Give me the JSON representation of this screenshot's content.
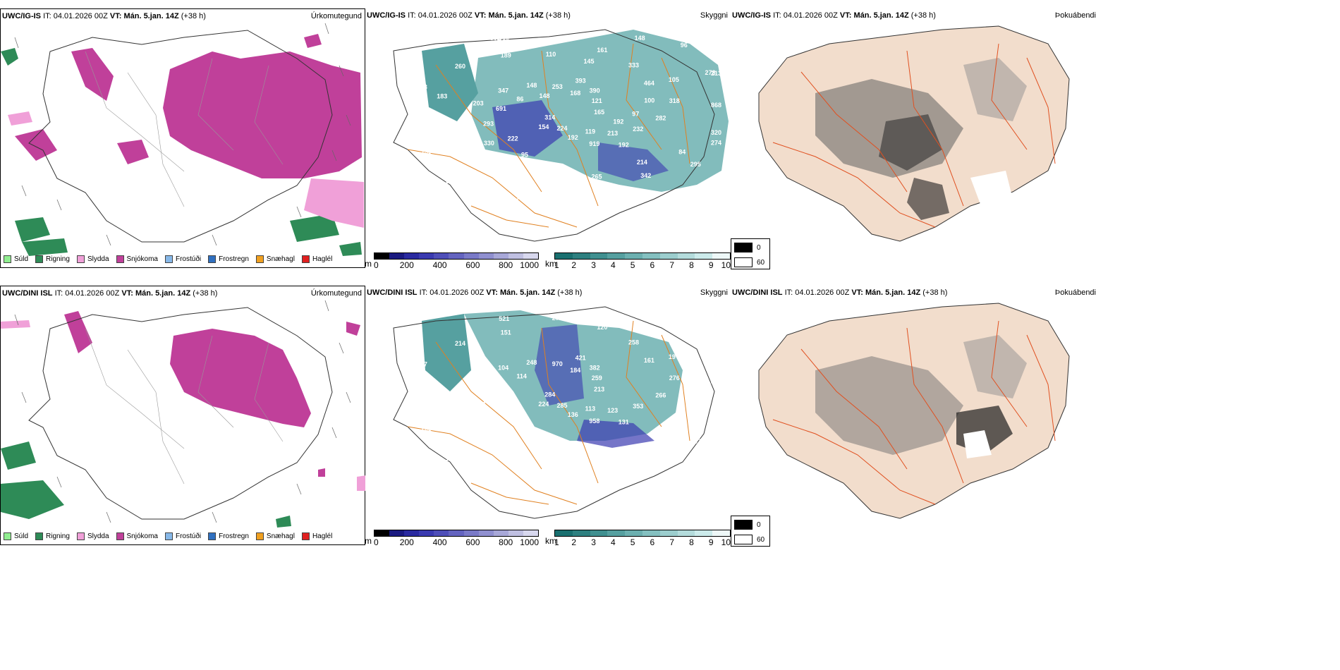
{
  "rows": [
    {
      "model_label": "UWC/IG-IS",
      "it_prefix": "IT:",
      "it_value": "04.01.2026 00Z",
      "vt_prefix": "VT:",
      "vt_value": "Mán. 5.jan. 14Z",
      "lead": "(+38 h)"
    },
    {
      "model_label": "UWC/DINI ISL",
      "it_prefix": "IT:",
      "it_value": "04.01.2026 00Z",
      "vt_prefix": "VT:",
      "vt_value": "Mán. 5.jan. 14Z",
      "lead": "(+38 h)"
    }
  ],
  "panel_titles": {
    "precip_type": "Úrkomutegund",
    "cloud": "Skyggni",
    "fog": "Þokuábendi"
  },
  "precip_legend": [
    {
      "label": "Súld",
      "color": "#90ee90"
    },
    {
      "label": "Rigning",
      "color": "#2e8b57"
    },
    {
      "label": "Slydda",
      "color": "#f0a0d8"
    },
    {
      "label": "Snjókoma",
      "color": "#c0409a"
    },
    {
      "label": "Frostúði",
      "color": "#87b8e8"
    },
    {
      "label": "Frostregn",
      "color": "#3070c0"
    },
    {
      "label": "Snæhagl",
      "color": "#f0a020"
    },
    {
      "label": "Haglél",
      "color": "#e02020"
    }
  ],
  "colorbar_m": {
    "unit": "m",
    "ticks": [
      "0",
      "200",
      "400",
      "600",
      "800",
      "1000"
    ],
    "colors": [
      "#000000",
      "#1a1a80",
      "#2a2aa0",
      "#3a3ab0",
      "#4e4eb8",
      "#6464c0",
      "#7a7ac8",
      "#9090d0",
      "#a8a8d8",
      "#c0c0e2",
      "#d8d8ee"
    ]
  },
  "colorbar_km": {
    "unit": "km",
    "ticks": [
      "1",
      "2",
      "3",
      "4",
      "5",
      "6",
      "7",
      "8",
      "9",
      "10"
    ],
    "colors": [
      "#1a7070",
      "#2e8080",
      "#409090",
      "#56a0a0",
      "#6cb0b0",
      "#84c0c0",
      "#9ccece",
      "#b4dcdc",
      "#ccebeb",
      "#eef8f8"
    ]
  },
  "fog_legend": [
    {
      "label": "0",
      "color": "#000000"
    },
    {
      "label": "60",
      "color": "#ffffff"
    }
  ],
  "cloud_labels_top": [
    "165",
    "154",
    "393",
    "192",
    "203",
    "105",
    "362",
    "167",
    "274",
    "314",
    "390",
    "919",
    "347",
    "318",
    "433",
    "439",
    "295",
    "379",
    "121",
    "192",
    "148",
    "282",
    "330",
    "161",
    "342",
    "223",
    "213",
    "224",
    "253",
    "232",
    "293",
    "333",
    "265",
    "260",
    "868",
    "330",
    "168",
    "213",
    "691",
    "464",
    "658",
    "189",
    "320",
    "139",
    "148",
    "119",
    "86",
    "100",
    "95",
    "110",
    "84",
    "83",
    "96",
    "91",
    "148",
    "97",
    "222",
    "145",
    "214",
    "183",
    "278",
    "792",
    "802",
    "192"
  ],
  "cloud_labels_bottom": [
    "213",
    "224",
    "421",
    "131",
    "172",
    "19",
    "333",
    "521",
    "366",
    "284",
    "382",
    "958",
    "104",
    "276",
    "207",
    "271",
    "387",
    "268",
    "259",
    "136",
    "248",
    "266",
    "235",
    "120",
    "183",
    "337",
    "188",
    "285",
    "970",
    "353",
    "270",
    "258",
    "538",
    "214",
    "430",
    "187",
    "184",
    "123",
    "260",
    "161",
    "292",
    "151",
    "124",
    "205",
    "55",
    "113",
    "114"
  ]
}
